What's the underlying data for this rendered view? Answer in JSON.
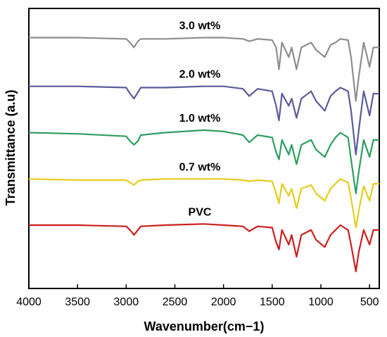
{
  "chart_data": {
    "type": "line",
    "title": "",
    "xlabel": "Wavenumber(cm−1)",
    "ylabel": "Transmittance (a.u)",
    "xlim": [
      4000,
      400
    ],
    "x_reversed": true,
    "x_ticks": [
      4000,
      3500,
      3000,
      2500,
      2000,
      1500,
      1000,
      500
    ],
    "grid": false,
    "legend": "none",
    "y_ticks_shown": false,
    "offset_note": "curves stacked vertically, arbitrary units",
    "series": [
      {
        "name": "3.0 wt%",
        "color": "#8e8e8e",
        "x": [
          4000,
          3500,
          3000,
          2960,
          2920,
          2880,
          2850,
          2600,
          2200,
          2000,
          1800,
          1735,
          1650,
          1500,
          1460,
          1430,
          1400,
          1330,
          1300,
          1250,
          1200,
          1100,
          1050,
          960,
          900,
          850,
          800,
          720,
          690,
          640,
          610,
          560,
          500,
          460,
          400
        ],
        "y": [
          88,
          88,
          87.5,
          86,
          84,
          86.5,
          87.5,
          87.5,
          88,
          88,
          87.5,
          86.5,
          87.5,
          87,
          84,
          75,
          86,
          80,
          84,
          75,
          84,
          86,
          83,
          80,
          85,
          86,
          87.5,
          87,
          80,
          62,
          72,
          86,
          76,
          84,
          84
        ]
      },
      {
        "name": "2.0 wt%",
        "color": "#5b5b9a",
        "x": [
          4000,
          3500,
          3000,
          2960,
          2920,
          2880,
          2850,
          2600,
          2200,
          2000,
          1800,
          1735,
          1650,
          1500,
          1460,
          1430,
          1400,
          1330,
          1300,
          1250,
          1200,
          1100,
          1050,
          960,
          900,
          850,
          800,
          720,
          690,
          640,
          610,
          560,
          500,
          460,
          400
        ],
        "y": [
          68,
          68,
          67.5,
          65,
          63,
          65.5,
          67.5,
          67.5,
          68,
          68,
          67,
          64,
          67,
          66,
          60,
          54,
          65,
          60,
          63,
          55,
          63,
          66,
          62,
          58,
          64,
          66,
          67.5,
          66,
          58,
          40,
          50,
          66,
          56,
          65,
          65
        ]
      },
      {
        "name": "1.0 wt%",
        "color": "#2e9e60",
        "x": [
          4000,
          3500,
          3000,
          2960,
          2920,
          2880,
          2850,
          2600,
          2200,
          2000,
          1800,
          1735,
          1650,
          1500,
          1460,
          1430,
          1400,
          1330,
          1300,
          1250,
          1200,
          1100,
          1050,
          960,
          900,
          850,
          800,
          720,
          690,
          640,
          610,
          560,
          500,
          460,
          400
        ],
        "y": [
          49,
          48.5,
          47.5,
          45.5,
          44,
          45.5,
          48,
          49,
          50,
          49.5,
          48,
          45,
          48,
          47,
          41,
          38,
          46,
          40,
          44,
          36,
          44,
          46,
          42,
          39,
          44,
          47,
          49,
          47,
          38,
          24,
          33,
          46,
          39,
          46,
          46
        ]
      },
      {
        "name": "0.7 wt%",
        "color": "#e6cc1c",
        "x": [
          4000,
          3500,
          3000,
          2960,
          2920,
          2880,
          2850,
          2600,
          2200,
          2000,
          1800,
          1735,
          1650,
          1500,
          1460,
          1430,
          1400,
          1330,
          1300,
          1250,
          1200,
          1100,
          1050,
          960,
          900,
          850,
          800,
          720,
          690,
          640,
          610,
          560,
          500,
          460,
          400
        ],
        "y": [
          30,
          29.5,
          29.5,
          28.5,
          27.5,
          29,
          29.5,
          30,
          30,
          30,
          29.5,
          29,
          29.5,
          29,
          24,
          20,
          28,
          23,
          26,
          18,
          26,
          27.5,
          24,
          21,
          26,
          28,
          30,
          28.5,
          22,
          10,
          17,
          27,
          21,
          28,
          28
        ]
      },
      {
        "name": "PVC",
        "color": "#cc1f1f",
        "x": [
          4000,
          3500,
          3000,
          2960,
          2920,
          2880,
          2850,
          2600,
          2200,
          2000,
          1800,
          1735,
          1650,
          1500,
          1460,
          1430,
          1400,
          1330,
          1300,
          1250,
          1200,
          1100,
          1050,
          960,
          900,
          850,
          800,
          720,
          690,
          640,
          610,
          560,
          500,
          460,
          400
        ],
        "y": [
          11,
          11,
          10.5,
          9,
          7,
          9,
          10.5,
          11,
          11.5,
          11,
          10.5,
          8.5,
          10.5,
          10,
          4,
          1,
          9,
          3,
          7,
          -2,
          7,
          9,
          5,
          2,
          7,
          9,
          11,
          9,
          3,
          -8,
          0,
          9,
          3,
          9,
          9
        ]
      }
    ]
  }
}
